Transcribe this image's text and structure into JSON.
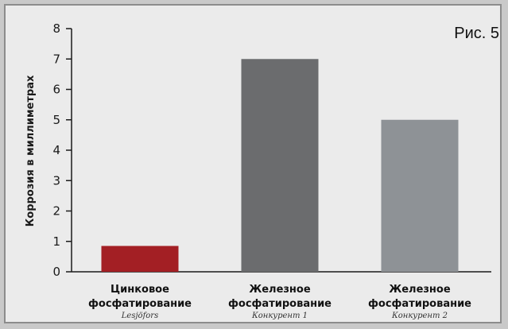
{
  "figure_label": "Рис. 5",
  "chart_data": {
    "type": "bar",
    "title": "",
    "xlabel": "",
    "ylabel": "Коррозия в миллиметрах",
    "ylim": [
      0,
      8
    ],
    "yticks": [
      0,
      1,
      2,
      3,
      4,
      5,
      6,
      7,
      8
    ],
    "grid": false,
    "categories": [
      {
        "line1": "Цинковое",
        "line2": "фосфатирование",
        "sub": "Lesjöfors"
      },
      {
        "line1": "Железное",
        "line2": "фосфатирование",
        "sub": "Конкурент 1"
      },
      {
        "line1": "Железное",
        "line2": "фосфатирование",
        "sub": "Конкурент 2"
      }
    ],
    "values": [
      0.85,
      7,
      5
    ],
    "colors": [
      "#a31f24",
      "#6b6c6e",
      "#8e9296"
    ]
  }
}
